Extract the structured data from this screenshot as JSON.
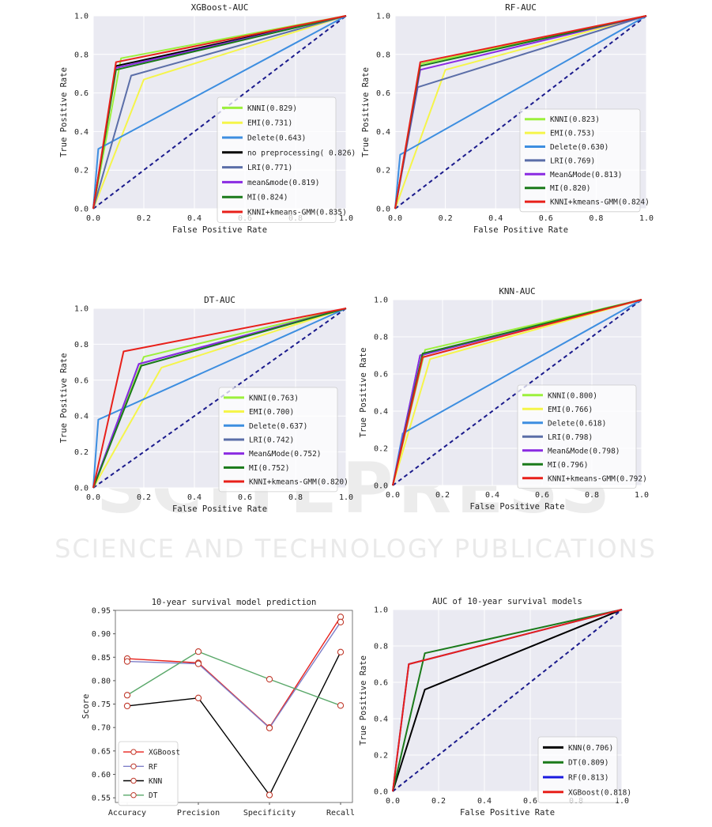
{
  "watermark": {
    "big": "SCITEPRESS",
    "small": "SCIENCE AND TECHNOLOGY PUBLICATIONS"
  },
  "chart_data": [
    {
      "id": "xgb",
      "type": "line",
      "title": "XGBoost-AUC",
      "xlabel": "False Positive Rate",
      "ylabel": "True Positive Rate",
      "xlim": [
        0,
        1
      ],
      "ylim": [
        0,
        1
      ],
      "xticks": [
        "0.0",
        "0.2",
        "0.4",
        "0.6",
        "0.8",
        "1.0"
      ],
      "yticks": [
        "0.0",
        "0.2",
        "0.4",
        "0.6",
        "0.8",
        "1.0"
      ],
      "grid": true,
      "legend_position": "lower-right",
      "series": [
        {
          "name": "KNNI(0.829)",
          "color": "#9cf03c",
          "points": [
            [
              0,
              0
            ],
            [
              0.11,
              0.78
            ],
            [
              1,
              1
            ]
          ]
        },
        {
          "name": "EMI(0.731)",
          "color": "#f5f54a",
          "points": [
            [
              0,
              0
            ],
            [
              0.2,
              0.67
            ],
            [
              1,
              1
            ]
          ]
        },
        {
          "name": "Delete(0.643)",
          "color": "#3d8ee0",
          "points": [
            [
              0,
              0
            ],
            [
              0.02,
              0.31
            ],
            [
              1,
              1
            ]
          ]
        },
        {
          "name": "no preprocessing( 0.826)",
          "color": "#000000",
          "points": [
            [
              0,
              0
            ],
            [
              0.09,
              0.74
            ],
            [
              1,
              1
            ]
          ]
        },
        {
          "name": "LRI(0.771)",
          "color": "#5b6ea8",
          "points": [
            [
              0,
              0
            ],
            [
              0.15,
              0.69
            ],
            [
              1,
              1
            ]
          ]
        },
        {
          "name": "mean&mode(0.819)",
          "color": "#8a2be2",
          "points": [
            [
              0,
              0
            ],
            [
              0.09,
              0.73
            ],
            [
              1,
              1
            ]
          ]
        },
        {
          "name": "MI(0.824)",
          "color": "#1a7a1a",
          "points": [
            [
              0,
              0
            ],
            [
              0.09,
              0.72
            ],
            [
              1,
              1
            ]
          ]
        },
        {
          "name": "KNNI+kmeans-GMM(0.835)",
          "color": "#e8201a",
          "points": [
            [
              0,
              0
            ],
            [
              0.09,
              0.76
            ],
            [
              1,
              1
            ]
          ]
        }
      ],
      "diagonal_color": "#1a1a8c"
    },
    {
      "id": "rf",
      "type": "line",
      "title": "RF-AUC",
      "xlabel": "False Positive Rate",
      "ylabel": "True Positive Rate",
      "xlim": [
        0,
        1
      ],
      "ylim": [
        0,
        1
      ],
      "xticks": [
        "0.0",
        "0.2",
        "0.4",
        "0.6",
        "0.8",
        "1.0"
      ],
      "yticks": [
        "0.0",
        "0.2",
        "0.4",
        "0.6",
        "0.8",
        "1.0"
      ],
      "grid": true,
      "legend_position": "lower-right",
      "series": [
        {
          "name": "KNNI(0.823)",
          "color": "#9cf03c",
          "points": [
            [
              0,
              0
            ],
            [
              0.1,
              0.75
            ],
            [
              1,
              1
            ]
          ]
        },
        {
          "name": "EMI(0.753)",
          "color": "#f5f54a",
          "points": [
            [
              0,
              0
            ],
            [
              0.2,
              0.72
            ],
            [
              1,
              1
            ]
          ]
        },
        {
          "name": "Delete(0.630)",
          "color": "#3d8ee0",
          "points": [
            [
              0,
              0
            ],
            [
              0.02,
              0.28
            ],
            [
              1,
              1
            ]
          ]
        },
        {
          "name": "LRI(0.769)",
          "color": "#5b6ea8",
          "points": [
            [
              0,
              0
            ],
            [
              0.09,
              0.63
            ],
            [
              1,
              1
            ]
          ]
        },
        {
          "name": "Mean&Mode(0.813)",
          "color": "#8a2be2",
          "points": [
            [
              0,
              0
            ],
            [
              0.1,
              0.72
            ],
            [
              1,
              1
            ]
          ]
        },
        {
          "name": "MI(0.820)",
          "color": "#1a7a1a",
          "points": [
            [
              0,
              0
            ],
            [
              0.1,
              0.74
            ],
            [
              1,
              1
            ]
          ]
        },
        {
          "name": "KNNI+kmeans-GMM(0.824)",
          "color": "#e8201a",
          "points": [
            [
              0,
              0
            ],
            [
              0.1,
              0.76
            ],
            [
              1,
              1
            ]
          ]
        }
      ],
      "diagonal_color": "#1a1a8c"
    },
    {
      "id": "dt",
      "type": "line",
      "title": "DT-AUC",
      "xlabel": "False Positive Rate",
      "ylabel": "True Positive Rate",
      "xlim": [
        0,
        1
      ],
      "ylim": [
        0,
        1
      ],
      "xticks": [
        "0.0",
        "0.2",
        "0.4",
        "0.6",
        "0.8",
        "1.0"
      ],
      "yticks": [
        "0.0",
        "0.2",
        "0.4",
        "0.6",
        "0.8",
        "1.0"
      ],
      "grid": true,
      "legend_position": "lower-right",
      "series": [
        {
          "name": "KNNI(0.763)",
          "color": "#9cf03c",
          "points": [
            [
              0,
              0
            ],
            [
              0.2,
              0.73
            ],
            [
              1,
              1
            ]
          ]
        },
        {
          "name": "EMI(0.700)",
          "color": "#f5f54a",
          "points": [
            [
              0,
              0
            ],
            [
              0.27,
              0.67
            ],
            [
              1,
              1
            ]
          ]
        },
        {
          "name": "Delete(0.637)",
          "color": "#3d8ee0",
          "points": [
            [
              0,
              0
            ],
            [
              0.02,
              0.38
            ],
            [
              1,
              1
            ]
          ]
        },
        {
          "name": "LRI(0.742)",
          "color": "#5b6ea8",
          "points": [
            [
              0,
              0
            ],
            [
              0.18,
              0.69
            ],
            [
              1,
              1
            ]
          ]
        },
        {
          "name": "Mean&Mode(0.752)",
          "color": "#8a2be2",
          "points": [
            [
              0,
              0
            ],
            [
              0.18,
              0.69
            ],
            [
              1,
              1
            ]
          ]
        },
        {
          "name": "MI(0.752)",
          "color": "#1a7a1a",
          "points": [
            [
              0,
              0
            ],
            [
              0.19,
              0.68
            ],
            [
              1,
              1
            ]
          ]
        },
        {
          "name": "KNNI+kmeans-GMM(0.820)",
          "color": "#e8201a",
          "points": [
            [
              0,
              0
            ],
            [
              0.12,
              0.76
            ],
            [
              1,
              1
            ]
          ]
        }
      ],
      "diagonal_color": "#1a1a8c"
    },
    {
      "id": "knn",
      "type": "line",
      "title": "KNN-AUC",
      "xlabel": "False Positive Rate",
      "ylabel": "True Positive Rate",
      "xlim": [
        0,
        1
      ],
      "ylim": [
        0,
        1
      ],
      "xticks": [
        "0.0",
        "0.2",
        "0.4",
        "0.6",
        "0.8",
        "1.0"
      ],
      "yticks": [
        "0.0",
        "0.2",
        "0.4",
        "0.6",
        "0.8",
        "1.0"
      ],
      "grid": true,
      "legend_position": "lower-right",
      "series": [
        {
          "name": "KNNI(0.800)",
          "color": "#9cf03c",
          "points": [
            [
              0,
              0
            ],
            [
              0.13,
              0.73
            ],
            [
              1,
              1
            ]
          ]
        },
        {
          "name": "EMI(0.766)",
          "color": "#f5f54a",
          "points": [
            [
              0,
              0
            ],
            [
              0.15,
              0.68
            ],
            [
              1,
              1
            ]
          ]
        },
        {
          "name": "Delete(0.618)",
          "color": "#3d8ee0",
          "points": [
            [
              0,
              0
            ],
            [
              0.04,
              0.28
            ],
            [
              1,
              1
            ]
          ]
        },
        {
          "name": "LRI(0.798)",
          "color": "#5b6ea8",
          "points": [
            [
              0,
              0
            ],
            [
              0.11,
              0.7
            ],
            [
              1,
              1
            ]
          ]
        },
        {
          "name": "Mean&Mode(0.798)",
          "color": "#8a2be2",
          "points": [
            [
              0,
              0
            ],
            [
              0.11,
              0.7
            ],
            [
              1,
              1
            ]
          ]
        },
        {
          "name": "MI(0.796)",
          "color": "#1a7a1a",
          "points": [
            [
              0,
              0
            ],
            [
              0.12,
              0.71
            ],
            [
              1,
              1
            ]
          ]
        },
        {
          "name": "KNNI+kmeans-GMM(0.792)",
          "color": "#e8201a",
          "points": [
            [
              0,
              0
            ],
            [
              0.12,
              0.69
            ],
            [
              1,
              1
            ]
          ]
        }
      ],
      "diagonal_color": "#1a1a8c"
    },
    {
      "id": "pred",
      "type": "line",
      "title": "10-year survival model prediction",
      "xlabel": "",
      "ylabel": "Score",
      "categories": [
        "Accuracy",
        "Precision",
        "Specificity",
        "Recall"
      ],
      "ylim": [
        0.54,
        0.95
      ],
      "yticks": [
        "0.55",
        "0.60",
        "0.65",
        "0.70",
        "0.75",
        "0.80",
        "0.85",
        "0.90",
        "0.95"
      ],
      "grid": false,
      "legend_position": "lower-left",
      "series": [
        {
          "name": "XGBoost",
          "color": "#e8201a",
          "values": [
            0.847,
            0.838,
            0.7,
            0.936
          ]
        },
        {
          "name": "RF",
          "color": "#7f7fc8",
          "values": [
            0.841,
            0.836,
            0.699,
            0.925
          ]
        },
        {
          "name": "KNN",
          "color": "#000000",
          "values": [
            0.746,
            0.763,
            0.556,
            0.861
          ]
        },
        {
          "name": "DT",
          "color": "#5aa86a",
          "values": [
            0.769,
            0.862,
            0.803,
            0.747
          ]
        }
      ]
    },
    {
      "id": "auc10",
      "type": "line",
      "title": "AUC of 10-year survival models",
      "xlabel": "False Positive Rate",
      "ylabel": "True Positive Rate",
      "xlim": [
        0,
        1
      ],
      "ylim": [
        0,
        1
      ],
      "xticks": [
        "0.0",
        "0.2",
        "0.4",
        "0.6",
        "0.8",
        "1.0"
      ],
      "yticks": [
        "0.0",
        "0.2",
        "0.4",
        "0.6",
        "0.8",
        "1.0"
      ],
      "grid": true,
      "legend_position": "lower-right",
      "series": [
        {
          "name": "KNN(0.706)",
          "color": "#000000",
          "points": [
            [
              0,
              0
            ],
            [
              0.14,
              0.56
            ],
            [
              1,
              1
            ]
          ]
        },
        {
          "name": "DT(0.809)",
          "color": "#1a7a1a",
          "points": [
            [
              0,
              0
            ],
            [
              0.14,
              0.76
            ],
            [
              1,
              1
            ]
          ]
        },
        {
          "name": "RF(0.813)",
          "color": "#1a1ae0",
          "points": [
            [
              0,
              0
            ],
            [
              0.07,
              0.7
            ],
            [
              1,
              1
            ]
          ]
        },
        {
          "name": "XGBoost(0.818)",
          "color": "#e8201a",
          "points": [
            [
              0,
              0
            ],
            [
              0.07,
              0.7
            ],
            [
              1,
              1
            ]
          ]
        }
      ],
      "diagonal_color": "#1a1a8c"
    }
  ]
}
